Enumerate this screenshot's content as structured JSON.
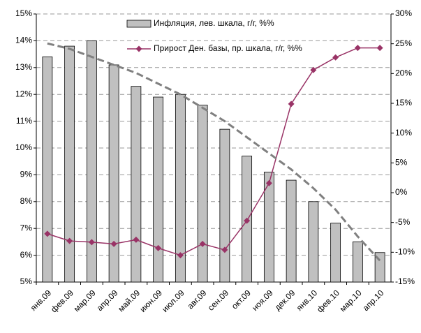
{
  "chart_data": {
    "type": "bar_line",
    "categories": [
      "янв.09",
      "фев.09",
      "мар.09",
      "апр.09",
      "май.09",
      "июн.09",
      "июл.09",
      "авг.09",
      "сен.09",
      "окт.09",
      "ноя.09",
      "дек.09",
      "янв.10",
      "фев.10",
      "мар.10",
      "апр.10"
    ],
    "series": [
      {
        "name": "Инфляция, лев. шкала, г/г, %%",
        "type": "bar",
        "color": "#c0c0c0",
        "axis": "y",
        "values": [
          13.4,
          13.8,
          14.0,
          13.1,
          12.3,
          11.9,
          12.0,
          11.6,
          10.7,
          9.7,
          9.1,
          8.8,
          8.0,
          7.2,
          6.5,
          6.1
        ]
      },
      {
        "name": "Прирост Ден. базы, пр. шкала, г/г, %%",
        "type": "line",
        "color": "#993366",
        "axis": "y2",
        "values": [
          -6.9,
          -8.1,
          -8.3,
          -8.6,
          -7.9,
          -9.3,
          -10.5,
          -8.6,
          -9.6,
          -4.7,
          1.6,
          14.9,
          20.6,
          22.7,
          24.3,
          24.3
        ]
      },
      {
        "type": "trend",
        "color": "#808080",
        "axis": "y",
        "values": [
          13.9,
          13.7,
          13.4,
          13.1,
          12.8,
          12.4,
          12.0,
          11.5,
          11.0,
          10.4,
          9.8,
          9.2,
          8.5,
          7.7,
          6.7,
          5.8
        ]
      }
    ],
    "ylim": [
      5,
      15
    ],
    "yticks": [
      {
        "value": 5,
        "label": "5%"
      },
      {
        "value": 6,
        "label": "6%"
      },
      {
        "value": 7,
        "label": "7%"
      },
      {
        "value": 8,
        "label": "8%"
      },
      {
        "value": 9,
        "label": "9%"
      },
      {
        "value": 10,
        "label": "10%"
      },
      {
        "value": 11,
        "label": "11%"
      },
      {
        "value": 12,
        "label": "12%"
      },
      {
        "value": 13,
        "label": "13%"
      },
      {
        "value": 14,
        "label": "14%"
      },
      {
        "value": 15,
        "label": "15%"
      }
    ],
    "y2lim": [
      -15,
      30
    ],
    "y2ticks": [
      {
        "value": -15,
        "label": "-15%"
      },
      {
        "value": -10,
        "label": "-10%"
      },
      {
        "value": -5,
        "label": "-5%"
      },
      {
        "value": 0,
        "label": "0%"
      },
      {
        "value": 5,
        "label": "5%"
      },
      {
        "value": 10,
        "label": "10%"
      },
      {
        "value": 15,
        "label": "15%"
      },
      {
        "value": 20,
        "label": "20%"
      },
      {
        "value": 25,
        "label": "25%"
      },
      {
        "value": 30,
        "label": "30%"
      }
    ],
    "grid": true
  }
}
